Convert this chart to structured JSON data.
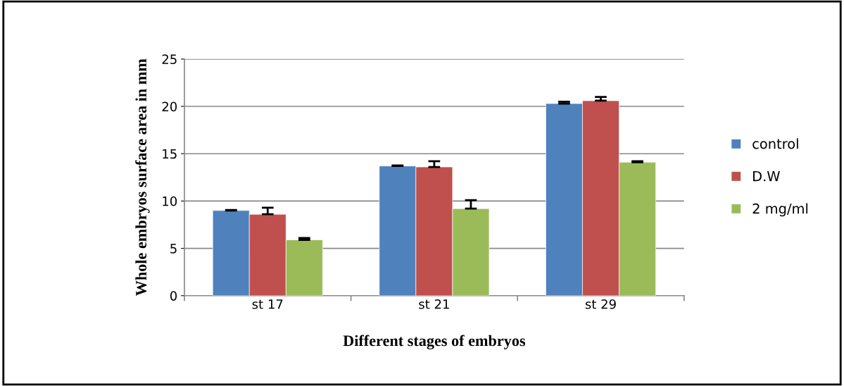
{
  "chart_data": {
    "type": "bar",
    "xlabel": "Different stages of embryos",
    "ylabel": "Whole embryos surface area in mm",
    "categories": [
      "st 17",
      "st 21",
      "st 29"
    ],
    "series": [
      {
        "name": "control",
        "color": "#4f81bd",
        "values": [
          9.0,
          13.7,
          20.3
        ],
        "errors": [
          [
            9.0,
            9.05
          ],
          [
            13.7,
            13.75
          ],
          [
            20.3,
            20.5
          ]
        ]
      },
      {
        "name": "D.W",
        "color": "#c0504d",
        "values": [
          8.6,
          13.6,
          20.6
        ],
        "errors": [
          [
            8.6,
            9.3
          ],
          [
            13.6,
            14.2
          ],
          [
            20.6,
            21.0
          ]
        ]
      },
      {
        "name": "2 mg/ml",
        "color": "#9bbb59",
        "values": [
          5.9,
          9.2,
          14.1
        ],
        "errors": [
          [
            5.9,
            6.1
          ],
          [
            9.2,
            10.1
          ],
          [
            14.1,
            14.2
          ]
        ]
      }
    ],
    "ylim": [
      0,
      25
    ],
    "yticks": [
      0,
      5,
      10,
      15,
      20,
      25
    ],
    "grid": "y",
    "legend": "right"
  }
}
